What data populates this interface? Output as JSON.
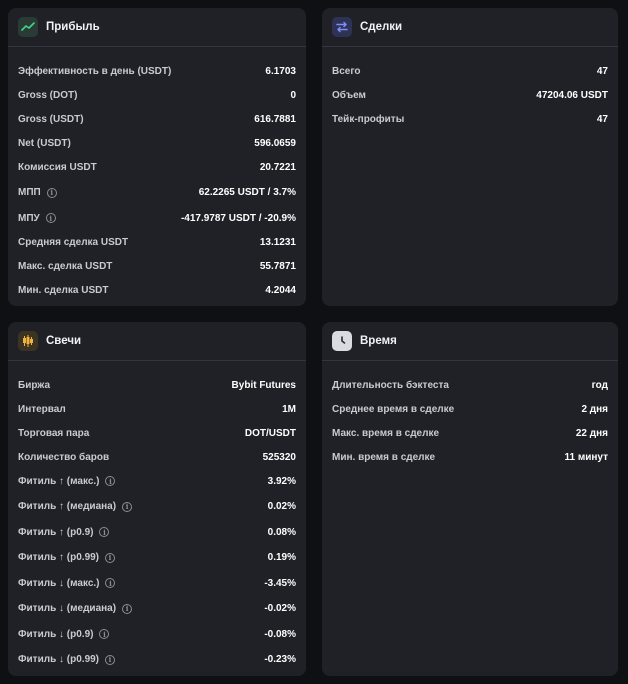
{
  "profit": {
    "title": "Прибыль",
    "rows": [
      {
        "label": "Эффективность в день (USDT)",
        "value": "6.1703",
        "info": false
      },
      {
        "label": "Gross (DOT)",
        "value": "0",
        "info": false
      },
      {
        "label": "Gross (USDT)",
        "value": "616.7881",
        "info": false
      },
      {
        "label": "Net (USDT)",
        "value": "596.0659",
        "info": false
      },
      {
        "label": "Комиссия USDT",
        "value": "20.7221",
        "info": false
      },
      {
        "label": "МПП",
        "value": "62.2265 USDT / 3.7%",
        "info": true
      },
      {
        "label": "МПУ",
        "value": "-417.9787 USDT / -20.9%",
        "info": true
      },
      {
        "label": "Средняя сделка USDT",
        "value": "13.1231",
        "info": false
      },
      {
        "label": "Макс. сделка USDT",
        "value": "55.7871",
        "info": false
      },
      {
        "label": "Мин. сделка USDT",
        "value": "4.2044",
        "info": false
      }
    ]
  },
  "trades": {
    "title": "Сделки",
    "rows": [
      {
        "label": "Всего",
        "value": "47",
        "info": false
      },
      {
        "label": "Объем",
        "value": "47204.06 USDT",
        "info": false
      },
      {
        "label": "Тейк-профиты",
        "value": "47",
        "info": false
      }
    ]
  },
  "candles": {
    "title": "Свечи",
    "rows": [
      {
        "label": "Биржа",
        "value": "Bybit Futures",
        "info": false
      },
      {
        "label": "Интервал",
        "value": "1M",
        "info": false
      },
      {
        "label": "Торговая пара",
        "value": "DOT/USDT",
        "info": false
      },
      {
        "label": "Количество баров",
        "value": "525320",
        "info": false
      },
      {
        "label": "Фитиль ↑ (макс.)",
        "value": "3.92%",
        "info": true
      },
      {
        "label": "Фитиль ↑ (медиана)",
        "value": "0.02%",
        "info": true
      },
      {
        "label": "Фитиль ↑ (p0.9)",
        "value": "0.08%",
        "info": true
      },
      {
        "label": "Фитиль ↑ (p0.99)",
        "value": "0.19%",
        "info": true
      },
      {
        "label": "Фитиль ↓ (макс.)",
        "value": "-3.45%",
        "info": true
      },
      {
        "label": "Фитиль ↓ (медиана)",
        "value": "-0.02%",
        "info": true
      },
      {
        "label": "Фитиль ↓ (p0.9)",
        "value": "-0.08%",
        "info": true
      },
      {
        "label": "Фитиль ↓ (p0.99)",
        "value": "-0.23%",
        "info": true
      }
    ]
  },
  "time": {
    "title": "Время",
    "rows": [
      {
        "label": "Длительность бэктеста",
        "value": "год",
        "info": false
      },
      {
        "label": "Среднее время в сделке",
        "value": "2 дня",
        "info": false
      },
      {
        "label": "Макс. время в сделке",
        "value": "22 дня",
        "info": false
      },
      {
        "label": "Мин. время в сделке",
        "value": "11 минут",
        "info": false
      }
    ]
  }
}
